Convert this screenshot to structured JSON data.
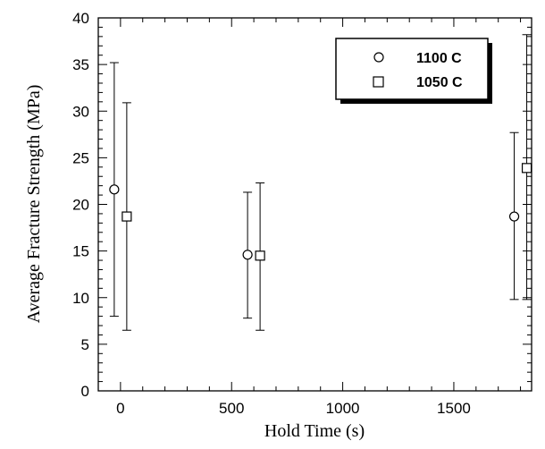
{
  "chart_data": {
    "type": "scatter",
    "title": "",
    "xlabel": "Hold Time (s)",
    "ylabel": "Average Fracture Strength (MPa)",
    "xlim": [
      -100,
      1850
    ],
    "ylim": [
      0,
      40
    ],
    "x_ticks": [
      0,
      500,
      1000,
      1500
    ],
    "y_ticks": [
      0,
      5,
      10,
      15,
      20,
      25,
      30,
      35,
      40
    ],
    "grid": false,
    "legend_position": "top-right",
    "series": [
      {
        "name": "1100 C",
        "marker": "circle",
        "points": [
          {
            "x": 0,
            "y": 21.6,
            "err_low": 8.0,
            "err_high": 35.2
          },
          {
            "x": 600,
            "y": 14.6,
            "err_low": 7.8,
            "err_high": 21.3
          },
          {
            "x": 1800,
            "y": 18.7,
            "err_low": 9.8,
            "err_high": 27.7
          }
        ]
      },
      {
        "name": "1050 C",
        "marker": "square",
        "points": [
          {
            "x": 0,
            "y": 18.7,
            "err_low": 6.5,
            "err_high": 30.9
          },
          {
            "x": 600,
            "y": 14.5,
            "err_low": 6.5,
            "err_high": 22.3
          },
          {
            "x": 1800,
            "y": 23.9,
            "err_low": 9.8,
            "err_high": 38.2
          }
        ]
      }
    ]
  }
}
